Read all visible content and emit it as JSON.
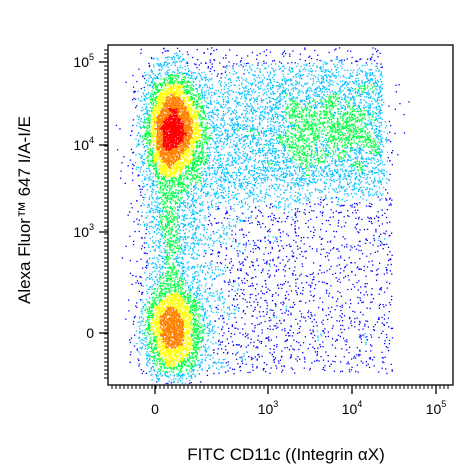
{
  "chart_data": {
    "type": "scatter",
    "subtype": "flow-cytometry-density-dot-plot",
    "xlabel": "FITC CD11c ((Integrin αX)",
    "ylabel": "Alexa Fluor™ 647  I/A-I/E",
    "x_scale": "biexponential",
    "y_scale": "biexponential",
    "x_ticks": [
      {
        "value": 0,
        "base": "0",
        "exp": ""
      },
      {
        "value": 1000,
        "base": "10",
        "exp": "3"
      },
      {
        "value": 10000,
        "base": "10",
        "exp": "4"
      },
      {
        "value": 100000,
        "base": "10",
        "exp": "5"
      }
    ],
    "y_ticks": [
      {
        "value": 0,
        "base": "0",
        "exp": ""
      },
      {
        "value": 1000,
        "base": "10",
        "exp": "3"
      },
      {
        "value": 10000,
        "base": "10",
        "exp": "4"
      },
      {
        "value": 100000,
        "base": "10",
        "exp": "5"
      }
    ],
    "populations": [
      {
        "name": "",
        "x_center": 150,
        "y_center": 18000,
        "density": "high"
      },
      {
        "name": "",
        "x_center": 150,
        "y_center": 0,
        "density": "medium"
      },
      {
        "name": "",
        "x_center": 5000,
        "y_center": 20000,
        "density": "low"
      }
    ],
    "color_scale": [
      "#0000ff",
      "#00c0ff",
      "#00ff40",
      "#ffff00",
      "#ff8000",
      "#ff0000"
    ],
    "grid": false,
    "legend": "none"
  }
}
